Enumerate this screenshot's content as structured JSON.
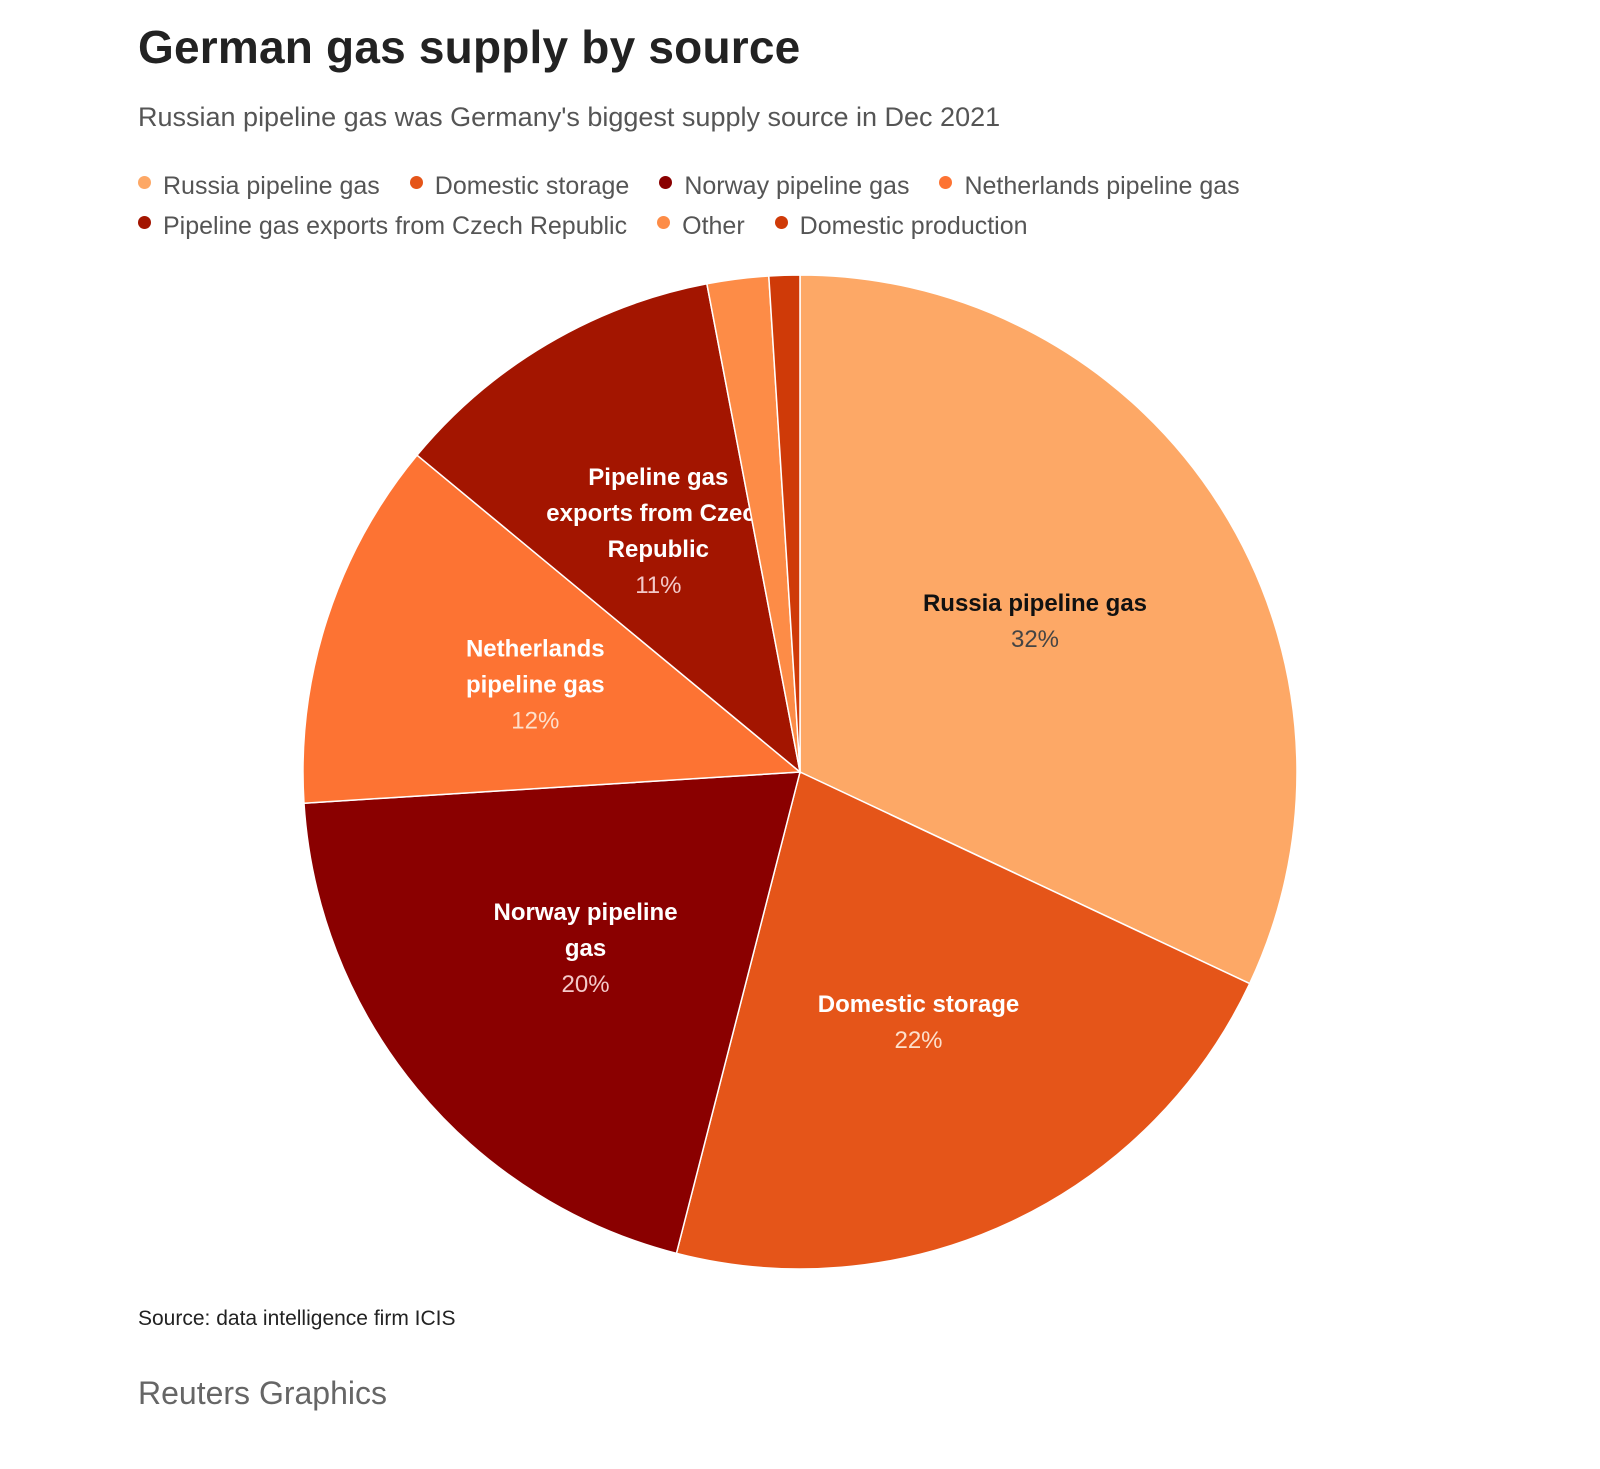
{
  "header": {
    "title": "German gas supply by source",
    "subtitle": "Russian pipeline gas was Germany's biggest supply source in Dec 2021"
  },
  "footer": {
    "source": "Source: data intelligence firm ICIS",
    "brand": "Reuters Graphics"
  },
  "chart_data": {
    "type": "pie",
    "title": "German gas supply by source",
    "subtitle": "Russian pipeline gas was Germany's biggest supply source in Dec 2021",
    "legend": "top",
    "slices": [
      {
        "label": "Russia pipeline gas",
        "value": 32,
        "pct_label": "32%",
        "color": "#fda866",
        "label_color": "#111111",
        "pct_color": "#444444",
        "label_lines": [
          "Russia pipeline gas"
        ]
      },
      {
        "label": "Domestic storage",
        "value": 22,
        "pct_label": "22%",
        "color": "#e55519",
        "label_color": "#ffffff",
        "pct_color": "#fde0cc",
        "label_lines": [
          "Domestic storage"
        ]
      },
      {
        "label": "Norway pipeline gas",
        "value": 20,
        "pct_label": "20%",
        "color": "#8a0000",
        "label_color": "#ffffff",
        "pct_color": "#f3c9c9",
        "label_lines": [
          "Norway pipeline",
          "gas"
        ]
      },
      {
        "label": "Netherlands pipeline gas",
        "value": 12,
        "pct_label": "12%",
        "color": "#fd7333",
        "label_color": "#ffffff",
        "pct_color": "#fde0cc",
        "label_lines": [
          "Netherlands",
          "pipeline gas"
        ]
      },
      {
        "label": "Pipeline gas exports from Czech Republic",
        "value": 11,
        "pct_label": "11%",
        "color": "#a31500",
        "label_color": "#ffffff",
        "pct_color": "#f3c9c9",
        "label_lines": [
          "Pipeline gas",
          "exports from Czech",
          "Republic"
        ]
      },
      {
        "label": "Other",
        "value": 2,
        "pct_label": "",
        "color": "#fd8c47",
        "label_color": "#ffffff",
        "pct_color": "#ffffff",
        "label_lines": []
      },
      {
        "label": "Domestic production",
        "value": 1,
        "pct_label": "",
        "color": "#cf3a08",
        "label_color": "#ffffff",
        "pct_color": "#ffffff",
        "label_lines": []
      }
    ]
  }
}
